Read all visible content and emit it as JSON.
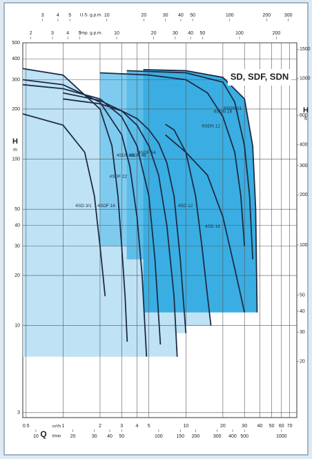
{
  "chart_data": {
    "type": "pump-curve",
    "title": "SD, SDF, SDN",
    "x_label": "Q",
    "x_unit": "m³/h",
    "x2_unit": "l/min",
    "x3_unit": "U.S. g.p.m.",
    "x4_unit": "Imp. g.p.m.",
    "y_label": "H",
    "y_unit": "m",
    "y2_label": "H",
    "y2_unit": "ft",
    "xscale": "log",
    "yscale": "log",
    "grid": true,
    "xlim": [
      0.47,
      80
    ],
    "xticks": [
      0.5,
      1,
      2,
      3,
      4,
      5,
      10,
      20,
      30,
      40,
      50,
      60,
      70
    ],
    "x2lim": [
      7.83,
      1333
    ],
    "x2ticks": [
      10,
      20,
      30,
      40,
      50,
      100,
      150,
      200,
      300,
      400,
      500,
      1000
    ],
    "x3lim": [
      2.07,
      352
    ],
    "x3ticks": [
      3,
      4,
      5,
      10,
      20,
      30,
      40,
      50,
      100,
      200,
      300
    ],
    "x4lim": [
      1.72,
      293
    ],
    "x4ticks": [
      2,
      3,
      4,
      5,
      10,
      20,
      30,
      40,
      50,
      100,
      200
    ],
    "ylim": [
      2.8,
      500
    ],
    "yticks": [
      3,
      10,
      20,
      30,
      40,
      50,
      100,
      200,
      300,
      400,
      500
    ],
    "y2lim": [
      9.19,
      1640
    ],
    "y2ticks": [
      20,
      30,
      40,
      50,
      100,
      200,
      300,
      400,
      600,
      1000,
      1500
    ],
    "series": [
      {
        "name": "4SD 3/1",
        "color": "#bfe2f5",
        "x": [
          0.47,
          1,
          1.5,
          1.8,
          2,
          2.2
        ],
        "values": [
          187,
          160,
          110,
          60,
          30,
          15
        ]
      },
      {
        "name": "4SDF 16",
        "color": "#bfe2f5",
        "x": [
          0.47,
          1,
          2,
          2.5,
          2.8,
          3,
          3.2,
          3.33
        ],
        "values": [
          350,
          320,
          200,
          120,
          60,
          30,
          15,
          8
        ]
      },
      {
        "name": "4SDF 22",
        "color": "#bfe2f5",
        "x": [
          0.47,
          1,
          2,
          3,
          3.5,
          4,
          4.4,
          4.78
        ],
        "values": [
          300,
          280,
          220,
          140,
          90,
          45,
          20,
          6.5
        ]
      },
      {
        "name": "4SDF 36",
        "color": "#bfe2f5",
        "x": [
          0.47,
          1,
          2,
          3,
          4,
          5,
          5.6,
          6.2
        ],
        "values": [
          280,
          265,
          230,
          180,
          120,
          60,
          25,
          7.7
        ]
      },
      {
        "name": "4SDF 46",
        "color": "#bfe2f5",
        "x": [
          1,
          2,
          3,
          4,
          5,
          6,
          7,
          8,
          8.5
        ],
        "values": [
          250,
          225,
          195,
          160,
          120,
          80,
          40,
          15,
          6.5
        ]
      },
      {
        "name": "4SDF 54",
        "color": "#bfe2f5",
        "x": [
          1,
          2,
          3,
          4,
          5,
          6,
          7,
          8,
          9,
          10
        ],
        "values": [
          230,
          215,
          195,
          175,
          150,
          125,
          95,
          60,
          25,
          9
        ]
      },
      {
        "name": "4SD 12",
        "color": "#bfe2f5",
        "x": [
          6.8,
          8,
          10,
          12,
          13.5,
          15,
          16
        ],
        "values": [
          162,
          150,
          110,
          60,
          30,
          15,
          10
        ]
      },
      {
        "name": "4SD 16",
        "color": "#bfe2f5",
        "x": [
          6.8,
          10,
          15,
          20,
          25,
          30
        ],
        "values": [
          140,
          110,
          80,
          45,
          22,
          12
        ]
      },
      {
        "name": "6SDN 12",
        "color": "#7fcbef",
        "x": [
          2,
          5,
          10,
          15,
          20,
          25,
          28,
          30
        ],
        "values": [
          330,
          320,
          300,
          250,
          180,
          110,
          60,
          30
        ]
      },
      {
        "name": "6SDN 18",
        "color": "#5cbde9",
        "x": [
          3.3,
          10,
          20,
          25,
          30,
          33,
          35
        ],
        "values": [
          340,
          330,
          290,
          220,
          120,
          60,
          25
        ]
      },
      {
        "name": "6SDN 21",
        "color": "#3aaee2",
        "x": [
          4.5,
          10,
          20,
          30,
          35,
          37,
          38
        ],
        "values": [
          345,
          340,
          310,
          230,
          120,
          50,
          12
        ]
      }
    ]
  }
}
